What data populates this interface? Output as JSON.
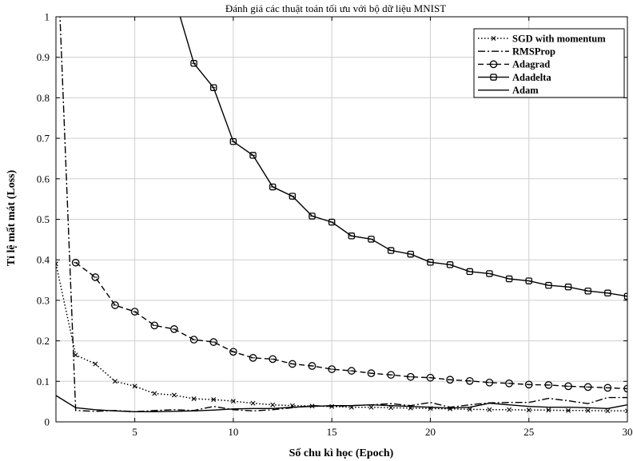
{
  "chart_data": {
    "type": "line",
    "title": "Đánh giá các thuật toán tối ưu với bộ dữ liệu MNIST",
    "xlabel": "Số chu kì học (Epoch)",
    "ylabel": "Tỉ lệ mất mát (Loss)",
    "xlim": [
      1,
      30
    ],
    "ylim": [
      0,
      1
    ],
    "xticks": [
      5,
      10,
      15,
      20,
      25,
      30
    ],
    "yticks": [
      0,
      0.1,
      0.2,
      0.3,
      0.4,
      0.5,
      0.6,
      0.7,
      0.8,
      0.9,
      1
    ],
    "grid": true,
    "legend_position": "top-right",
    "x": [
      1,
      2,
      3,
      4,
      5,
      6,
      7,
      8,
      9,
      10,
      11,
      12,
      13,
      14,
      15,
      16,
      17,
      18,
      19,
      20,
      21,
      22,
      23,
      24,
      25,
      26,
      27,
      28,
      29,
      30
    ],
    "series": [
      {
        "name": "SGD with momentum",
        "style": "dotted",
        "marker": "x",
        "values": [
          0.39,
          0.165,
          0.143,
          0.1,
          0.088,
          0.07,
          0.066,
          0.057,
          0.055,
          0.051,
          0.046,
          0.042,
          0.04,
          0.039,
          0.038,
          0.036,
          0.036,
          0.035,
          0.034,
          0.033,
          0.032,
          0.031,
          0.03,
          0.03,
          0.029,
          0.029,
          0.028,
          0.028,
          0.027,
          0.027
        ]
      },
      {
        "name": "RMSProp",
        "style": "dashdot",
        "marker": "none",
        "values": [
          1.25,
          0.028,
          0.026,
          0.028,
          0.025,
          0.028,
          0.03,
          0.028,
          0.038,
          0.03,
          0.027,
          0.03,
          0.035,
          0.04,
          0.038,
          0.04,
          0.042,
          0.045,
          0.04,
          0.048,
          0.036,
          0.042,
          0.047,
          0.048,
          0.048,
          0.058,
          0.052,
          0.045,
          0.06,
          0.06
        ]
      },
      {
        "name": "Adagrad",
        "style": "dashed",
        "marker": "o",
        "values": [
          null,
          0.393,
          0.357,
          0.288,
          0.272,
          0.238,
          0.229,
          0.203,
          0.197,
          0.173,
          0.158,
          0.155,
          0.143,
          0.138,
          0.13,
          0.126,
          0.12,
          0.116,
          0.111,
          0.109,
          0.104,
          0.101,
          0.097,
          0.095,
          0.092,
          0.091,
          0.088,
          0.086,
          0.084,
          0.082
        ]
      },
      {
        "name": "Adadelta",
        "style": "solid",
        "marker": "square",
        "values": [
          null,
          null,
          null,
          null,
          null,
          1.25,
          1.05,
          0.885,
          0.825,
          0.692,
          0.658,
          0.58,
          0.557,
          0.508,
          0.493,
          0.459,
          0.451,
          0.423,
          0.414,
          0.394,
          0.388,
          0.371,
          0.366,
          0.353,
          0.348,
          0.337,
          0.333,
          0.323,
          0.318,
          0.31
        ]
      },
      {
        "name": "Adam",
        "style": "solid",
        "marker": "none",
        "values": [
          0.065,
          0.035,
          0.03,
          0.027,
          0.025,
          0.025,
          0.026,
          0.027,
          0.029,
          0.032,
          0.033,
          0.033,
          0.036,
          0.038,
          0.04,
          0.04,
          0.042,
          0.04,
          0.038,
          0.036,
          0.034,
          0.036,
          0.046,
          0.042,
          0.038,
          0.036,
          0.036,
          0.035,
          0.033,
          0.042
        ]
      }
    ]
  }
}
